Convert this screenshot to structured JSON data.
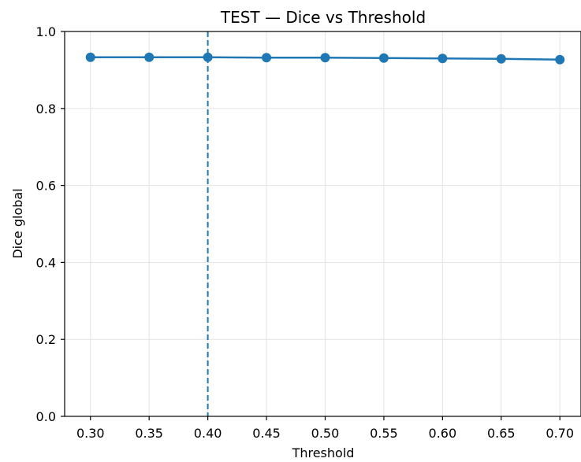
{
  "colors": {
    "series": "#1f77b4",
    "grid": "#e3e3e3",
    "axis": "#000000",
    "threshold_line": "#1f77b4"
  },
  "chart_data": {
    "type": "line",
    "title": "TEST — Dice vs Threshold",
    "xlabel": "Threshold",
    "ylabel": "Dice global",
    "x": [
      0.3,
      0.35,
      0.4,
      0.45,
      0.5,
      0.55,
      0.6,
      0.65,
      0.7
    ],
    "series": [
      {
        "values": [
          0.933,
          0.933,
          0.933,
          0.932,
          0.932,
          0.931,
          0.93,
          0.929,
          0.927
        ]
      }
    ],
    "xlim": [
      0.278,
      0.718
    ],
    "ylim": [
      0.0,
      1.0
    ],
    "xticks": [
      "0.30",
      "0.35",
      "0.40",
      "0.45",
      "0.50",
      "0.55",
      "0.60",
      "0.65",
      "0.70"
    ],
    "yticks": [
      "0.0",
      "0.2",
      "0.4",
      "0.6",
      "0.8",
      "1.0"
    ],
    "grid": true,
    "reference_line": {
      "orientation": "vertical",
      "x": 0.4,
      "style": "dashed"
    }
  }
}
